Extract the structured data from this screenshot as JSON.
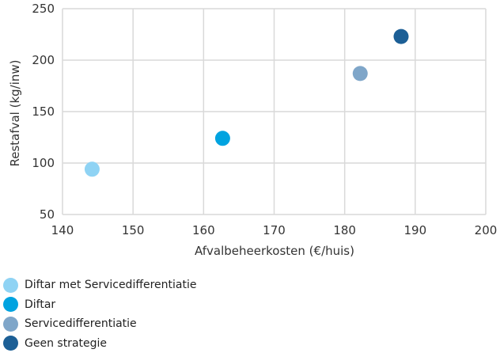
{
  "chart_data": {
    "type": "scatter",
    "xlabel": "Afvalbeheerkosten (€/huis)",
    "ylabel": "Restafval (kg/inw)",
    "xlim": [
      140,
      200
    ],
    "ylim": [
      50,
      250
    ],
    "xticks": [
      140,
      150,
      160,
      170,
      180,
      190,
      200
    ],
    "yticks": [
      50,
      100,
      150,
      200,
      250
    ],
    "grid": true,
    "legend_position": "bottom",
    "series": [
      {
        "name": "Diftar met Servicedifferentiatie",
        "color": "#8fd3f4",
        "points": [
          {
            "x": 144.2,
            "y": 94
          }
        ]
      },
      {
        "name": "Diftar",
        "color": "#00a3e0",
        "points": [
          {
            "x": 162.7,
            "y": 124
          }
        ]
      },
      {
        "name": "Servicedifferentiatie",
        "color": "#7fa6c9",
        "points": [
          {
            "x": 182.2,
            "y": 187
          }
        ]
      },
      {
        "name": "Geen strategie",
        "color": "#1c5f96",
        "points": [
          {
            "x": 188.0,
            "y": 223
          }
        ]
      }
    ]
  }
}
